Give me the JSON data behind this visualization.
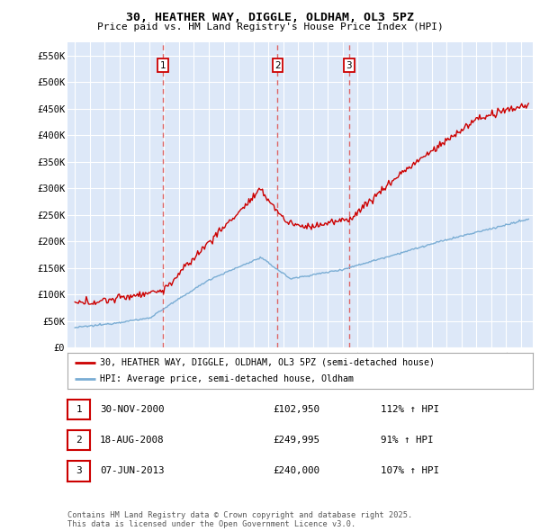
{
  "title": "30, HEATHER WAY, DIGGLE, OLDHAM, OL3 5PZ",
  "subtitle": "Price paid vs. HM Land Registry's House Price Index (HPI)",
  "bg_color": "#ffffff",
  "plot_bg_color": "#dde8f8",
  "grid_color": "#ffffff",
  "ylim": [
    0,
    575000
  ],
  "yticks": [
    0,
    50000,
    100000,
    150000,
    200000,
    250000,
    300000,
    350000,
    400000,
    450000,
    500000,
    550000
  ],
  "ytick_labels": [
    "£0",
    "£50K",
    "£100K",
    "£150K",
    "£200K",
    "£250K",
    "£300K",
    "£350K",
    "£400K",
    "£450K",
    "£500K",
    "£550K"
  ],
  "red_line_color": "#cc0000",
  "blue_line_color": "#7aadd4",
  "sale_points": [
    {
      "date": 2000.92,
      "price": 102950,
      "label": "1"
    },
    {
      "date": 2008.63,
      "price": 249995,
      "label": "2"
    },
    {
      "date": 2013.44,
      "price": 240000,
      "label": "3"
    }
  ],
  "vline_color": "#dd6666",
  "legend_label_red": "30, HEATHER WAY, DIGGLE, OLDHAM, OL3 5PZ (semi-detached house)",
  "legend_label_blue": "HPI: Average price, semi-detached house, Oldham",
  "table_entries": [
    {
      "num": "1",
      "date": "30-NOV-2000",
      "price": "£102,950",
      "hpi": "112% ↑ HPI"
    },
    {
      "num": "2",
      "date": "18-AUG-2008",
      "price": "£249,995",
      "hpi": "91% ↑ HPI"
    },
    {
      "num": "3",
      "date": "07-JUN-2013",
      "price": "£240,000",
      "hpi": "107% ↑ HPI"
    }
  ],
  "footer": "Contains HM Land Registry data © Crown copyright and database right 2025.\nThis data is licensed under the Open Government Licence v3.0.",
  "xlim_start": 1994.5,
  "xlim_end": 2025.8
}
